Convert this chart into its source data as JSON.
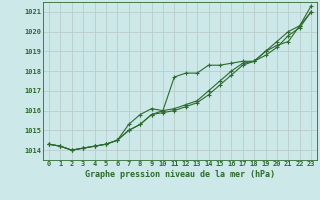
{
  "title": "Graphe pression niveau de la mer (hPa)",
  "background_color": "#cce8e8",
  "plot_bg_color": "#cce8e8",
  "grid_color": "#bbcccc",
  "line_color": "#2d6a2d",
  "marker_color": "#2d6a2d",
  "xlim": [
    -0.5,
    23.5
  ],
  "ylim": [
    1013.5,
    1021.5
  ],
  "xticks": [
    0,
    1,
    2,
    3,
    4,
    5,
    6,
    7,
    8,
    9,
    10,
    11,
    12,
    13,
    14,
    15,
    16,
    17,
    18,
    19,
    20,
    21,
    22,
    23
  ],
  "yticks": [
    1014,
    1015,
    1016,
    1017,
    1018,
    1019,
    1020,
    1021
  ],
  "series1": [
    1014.3,
    1014.2,
    1014.0,
    1014.1,
    1014.2,
    1014.3,
    1014.5,
    1015.3,
    1015.8,
    1016.1,
    1016.0,
    1017.7,
    1017.9,
    1017.9,
    1018.3,
    1018.3,
    1018.4,
    1018.5,
    1018.5,
    1019.0,
    1019.3,
    1019.5,
    1020.3,
    1021.3
  ],
  "series2": [
    1014.3,
    1014.2,
    1014.0,
    1014.1,
    1014.2,
    1014.3,
    1014.5,
    1015.0,
    1015.3,
    1015.8,
    1016.0,
    1016.1,
    1016.3,
    1016.5,
    1017.0,
    1017.5,
    1018.0,
    1018.4,
    1018.5,
    1019.0,
    1019.5,
    1020.0,
    1020.3,
    1021.0
  ],
  "series3": [
    1014.3,
    1014.2,
    1014.0,
    1014.1,
    1014.2,
    1014.3,
    1014.5,
    1015.0,
    1015.3,
    1015.8,
    1015.9,
    1016.0,
    1016.2,
    1016.4,
    1016.8,
    1017.3,
    1017.8,
    1018.3,
    1018.5,
    1018.8,
    1019.2,
    1019.8,
    1020.2,
    1021.0
  ],
  "xlabel_fontsize": 6.0,
  "tick_fontsize": 5.0
}
